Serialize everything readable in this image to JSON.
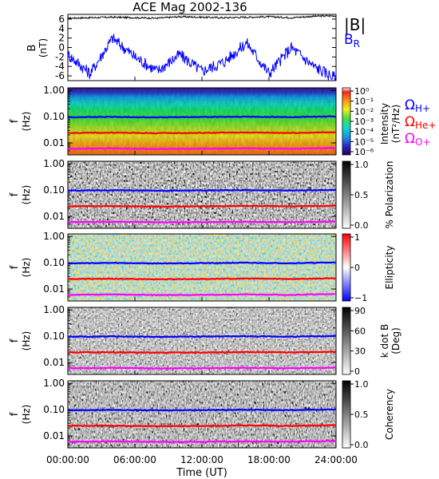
{
  "figure": {
    "title": "ACE Mag 2002-136",
    "xlabel": "Time (UT)",
    "xticks": [
      "00:00:00",
      "06:00:00",
      "12:00:00",
      "18:00:00",
      "24:00:00"
    ]
  },
  "legend": {
    "b_total": "|B|",
    "b_r": "B",
    "b_r_sub": "R",
    "omega": "Ω",
    "h_sub": "H+",
    "he_sub": "He+",
    "o_sub": "O+"
  },
  "colors": {
    "b_total": "#000000",
    "b_r": "#0000ff",
    "h_plus": "#0000ff",
    "he_plus": "#ff0000",
    "o_plus": "#ff00ff"
  },
  "chart_data": [
    {
      "type": "line",
      "ylabel": "B",
      "yunit": "(nT)",
      "ylim": [
        -7,
        7
      ],
      "yticks": [
        "6",
        "4",
        "2",
        "0",
        "-2",
        "-4",
        "-6"
      ],
      "x_hours": [
        0,
        2,
        4,
        6,
        8,
        10,
        12,
        14,
        16,
        18,
        20,
        22,
        24
      ],
      "series": [
        {
          "name": "|B|",
          "values": [
            6.2,
            6.3,
            6.4,
            6.3,
            6.2,
            6.5,
            6.4,
            6.3,
            6.4,
            6.5,
            6.3,
            6.6,
            6.7
          ]
        },
        {
          "name": "BR",
          "values": [
            -1.5,
            -5.5,
            2.0,
            -2.0,
            -5.0,
            -1.5,
            -5.0,
            -3.0,
            1.0,
            -5.5,
            0.0,
            -4.0,
            -6.5
          ]
        }
      ]
    },
    {
      "type": "heatmap",
      "ylabel": "f",
      "yunit": "(Hz)",
      "yticks": [
        "1.00",
        "0.10",
        "0.01"
      ],
      "colorbar_label": "Intensity",
      "colorbar_unit": "(nT²/Hz)",
      "colorbar_ticks": [
        "10⁰",
        "10⁻¹",
        "10⁻²",
        "10⁻³",
        "10⁻⁴",
        "10⁻⁵",
        "10⁻⁶"
      ],
      "colormap": "rainbow"
    },
    {
      "type": "heatmap",
      "ylabel": "f",
      "yunit": "(Hz)",
      "yticks": [
        "1.00",
        "0.10",
        "0.01"
      ],
      "colorbar_label": "% Polarization",
      "colorbar_ticks": [
        "1.0",
        "0.5",
        "0.0"
      ],
      "colormap": "gray"
    },
    {
      "type": "heatmap",
      "ylabel": "f",
      "yunit": "(Hz)",
      "yticks": [
        "1.00",
        "0.10",
        "0.01"
      ],
      "colorbar_label": "Ellipticity",
      "colorbar_ticks": [
        "1",
        "0",
        "−1"
      ],
      "colormap": "red-white-blue"
    },
    {
      "type": "heatmap",
      "ylabel": "f",
      "yunit": "(Hz)",
      "yticks": [
        "1.00",
        "0.10",
        "0.01"
      ],
      "colorbar_label": "k dot B",
      "colorbar_unit": "(Deg)",
      "colorbar_ticks": [
        "90",
        "60",
        "30",
        "0"
      ],
      "colormap": "gray"
    },
    {
      "type": "heatmap",
      "ylabel": "f",
      "yunit": "(Hz)",
      "yticks": [
        "1.00",
        "0.10",
        "0.01"
      ],
      "colorbar_label": "Coherency",
      "colorbar_ticks": [
        "1.0",
        "0.5",
        "0.0"
      ],
      "colormap": "gray"
    }
  ],
  "gyrofrequency_lines_hz": {
    "x_hours": [
      0,
      4,
      8,
      12,
      16,
      20,
      24
    ],
    "h_plus": [
      0.095,
      0.098,
      0.094,
      0.097,
      0.099,
      0.096,
      0.102
    ],
    "he_plus": [
      0.024,
      0.0245,
      0.0235,
      0.024,
      0.025,
      0.024,
      0.0255
    ],
    "o_plus": [
      0.006,
      0.0062,
      0.0059,
      0.006,
      0.0062,
      0.006,
      0.0064
    ]
  }
}
